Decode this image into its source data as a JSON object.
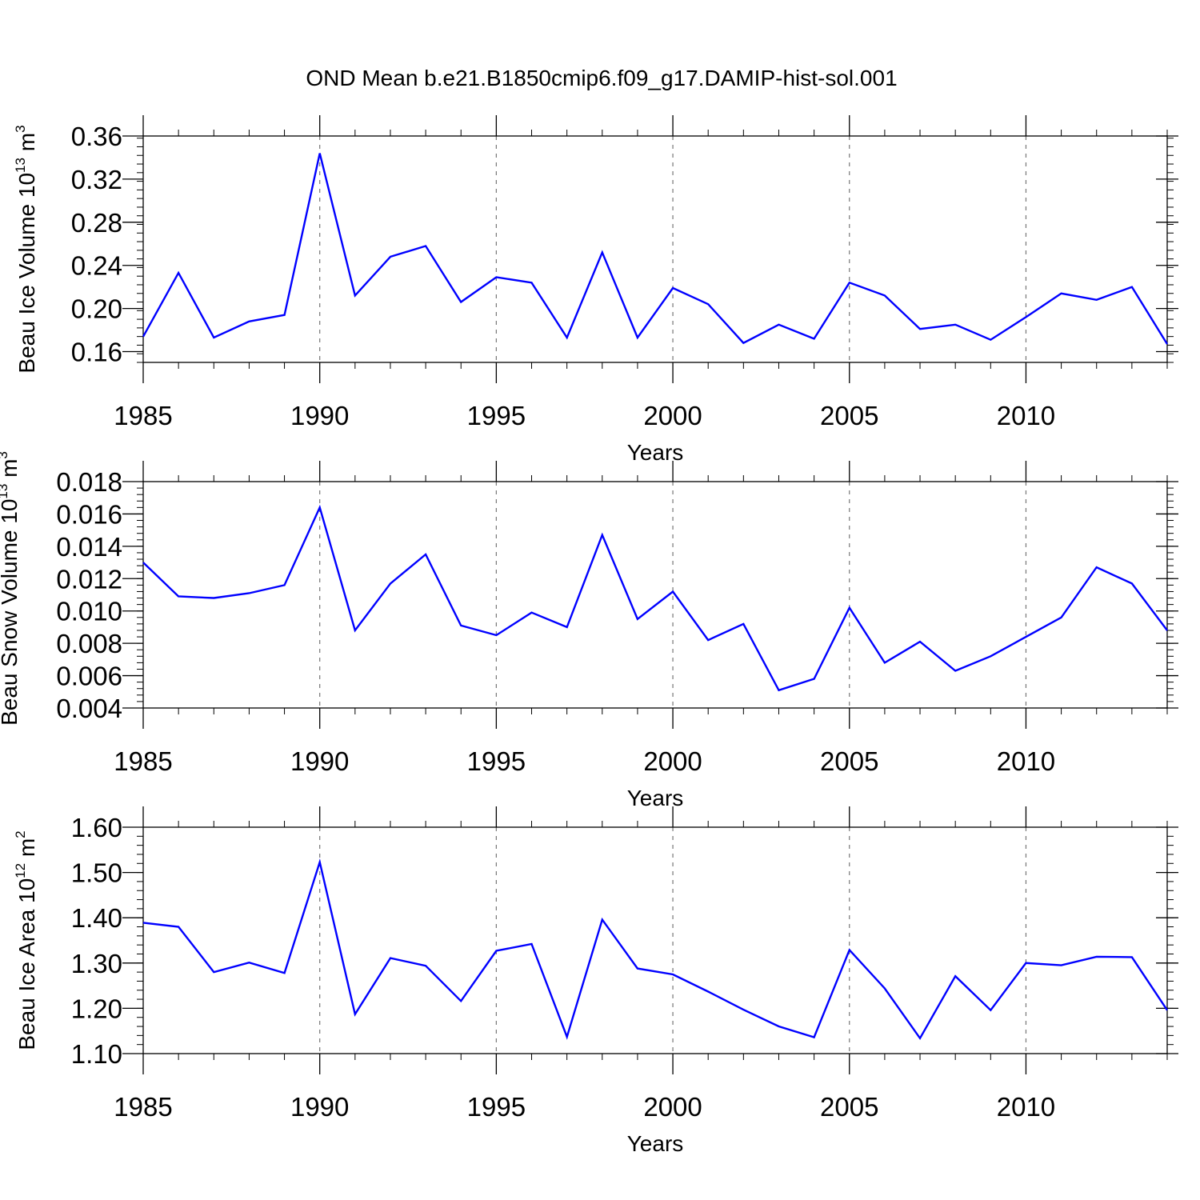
{
  "title": "OND Mean b.e21.B1850cmip6.f09_g17.DAMIP-hist-sol.001",
  "colors": {
    "line": "#0000ff",
    "axis": "#000000",
    "grid": "#777777"
  },
  "chart_data": [
    {
      "type": "line",
      "name": "ice-volume",
      "ylabel": {
        "main": "Beau Ice Volume 10",
        "sup": "13",
        "unit": " m",
        "unit_sup": "3"
      },
      "xlabel": "Years",
      "xlim": [
        1985,
        2014
      ],
      "ylim": [
        0.15,
        0.36
      ],
      "yticks": [
        0.16,
        0.2,
        0.24,
        0.28,
        0.32,
        0.36
      ],
      "ytick_labels": [
        "0.16",
        "0.20",
        "0.24",
        "0.28",
        "0.32",
        "0.36"
      ],
      "xticks": [
        1985,
        1990,
        1995,
        2000,
        2005,
        2010
      ],
      "xtick_labels": [
        "1985",
        "1990",
        "1995",
        "2000",
        "2005",
        "2010"
      ],
      "x": [
        1985,
        1986,
        1987,
        1988,
        1989,
        1990,
        1991,
        1992,
        1993,
        1994,
        1995,
        1996,
        1997,
        1998,
        1999,
        2000,
        2001,
        2002,
        2003,
        2004,
        2005,
        2006,
        2007,
        2008,
        2009,
        2010,
        2011,
        2012,
        2013,
        2014
      ],
      "y": [
        0.174,
        0.233,
        0.173,
        0.188,
        0.194,
        0.344,
        0.212,
        0.248,
        0.258,
        0.206,
        0.229,
        0.224,
        0.173,
        0.252,
        0.173,
        0.219,
        0.204,
        0.168,
        0.185,
        0.172,
        0.224,
        0.212,
        0.181,
        0.185,
        0.171,
        0.192,
        0.214,
        0.208,
        0.22,
        0.167
      ]
    },
    {
      "type": "line",
      "name": "snow-volume",
      "ylabel": {
        "main": "Beau Snow Volume 10",
        "sup": "13",
        "unit": " m",
        "unit_sup": "3"
      },
      "xlabel": "Years",
      "xlim": [
        1985,
        2014
      ],
      "ylim": [
        0.004,
        0.018
      ],
      "yticks": [
        0.004,
        0.006,
        0.008,
        0.01,
        0.012,
        0.014,
        0.016,
        0.018
      ],
      "ytick_labels": [
        "0.004",
        "0.006",
        "0.008",
        "0.010",
        "0.012",
        "0.014",
        "0.016",
        "0.018"
      ],
      "xticks": [
        1985,
        1990,
        1995,
        2000,
        2005,
        2010
      ],
      "xtick_labels": [
        "1985",
        "1990",
        "1995",
        "2000",
        "2005",
        "2010"
      ],
      "x": [
        1985,
        1986,
        1987,
        1988,
        1989,
        1990,
        1991,
        1992,
        1993,
        1994,
        1995,
        1996,
        1997,
        1998,
        1999,
        2000,
        2001,
        2002,
        2003,
        2004,
        2005,
        2006,
        2007,
        2008,
        2009,
        2010,
        2011,
        2012,
        2013,
        2014
      ],
      "y": [
        0.013,
        0.0109,
        0.0108,
        0.0111,
        0.0116,
        0.0164,
        0.0088,
        0.0117,
        0.0135,
        0.0091,
        0.0085,
        0.0099,
        0.009,
        0.0147,
        0.0095,
        0.0112,
        0.0082,
        0.0092,
        0.0051,
        0.0058,
        0.0102,
        0.0068,
        0.0081,
        0.0063,
        0.0072,
        0.0084,
        0.0096,
        0.0127,
        0.0117,
        0.0088
      ]
    },
    {
      "type": "line",
      "name": "ice-area",
      "ylabel": {
        "main": "Beau Ice Area 10",
        "sup": "12",
        "unit": " m",
        "unit_sup": "2"
      },
      "xlabel": "Years",
      "xlim": [
        1985,
        2014
      ],
      "ylim": [
        1.1,
        1.6
      ],
      "yticks": [
        1.1,
        1.2,
        1.3,
        1.4,
        1.5,
        1.6
      ],
      "ytick_labels": [
        "1.10",
        "1.20",
        "1.30",
        "1.40",
        "1.50",
        "1.60"
      ],
      "xticks": [
        1985,
        1990,
        1995,
        2000,
        2005,
        2010
      ],
      "xtick_labels": [
        "1985",
        "1990",
        "1995",
        "2000",
        "2005",
        "2010"
      ],
      "x": [
        1985,
        1986,
        1987,
        1988,
        1989,
        1990,
        1991,
        1992,
        1993,
        1994,
        1995,
        1996,
        1997,
        1998,
        1999,
        2000,
        2001,
        2002,
        2003,
        2004,
        2005,
        2006,
        2007,
        2008,
        2009,
        2010,
        2011,
        2012,
        2013,
        2014
      ],
      "y": [
        1.389,
        1.38,
        1.28,
        1.301,
        1.278,
        1.523,
        1.187,
        1.311,
        1.294,
        1.216,
        1.327,
        1.342,
        1.137,
        1.396,
        1.288,
        1.275,
        1.237,
        1.197,
        1.16,
        1.136,
        1.329,
        1.244,
        1.134,
        1.271,
        1.196,
        1.3,
        1.295,
        1.314,
        1.313,
        1.196
      ]
    }
  ]
}
